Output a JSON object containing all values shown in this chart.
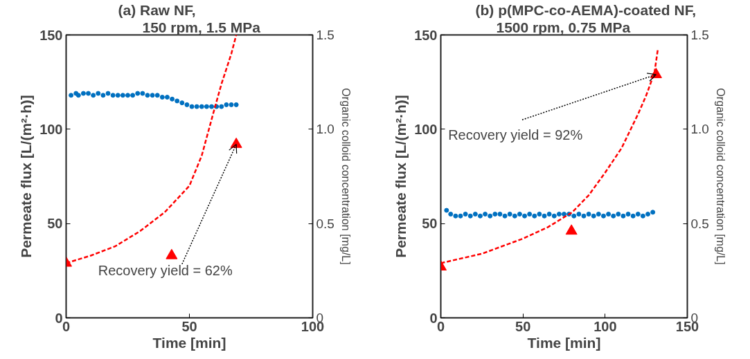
{
  "chart_data": [
    {
      "type": "scatter",
      "title": "(a)  Raw NF,",
      "subtitle": "150 rpm, 1.5 MPa",
      "xlabel": "Time [min]",
      "ylabel": "Permeate flux [L/(m²·h)]",
      "y2label": "Organic colloid concentration [mg/L]",
      "xlim": [
        0,
        100
      ],
      "xticks": [
        0,
        50,
        100
      ],
      "ylim": [
        0,
        150
      ],
      "yticks": [
        0,
        50,
        100,
        150
      ],
      "y2lim": [
        0,
        1.5
      ],
      "y2ticks": [
        0,
        0.5,
        {
          "value": 1,
          "label": "1.0"
        },
        1.5
      ],
      "grid": false,
      "annotations": [
        {
          "text": "Recovery yield = 62%",
          "x": 69,
          "y": 92
        }
      ],
      "series": [
        {
          "marker": "circle",
          "color": "#0070c0",
          "x": [
            2,
            4,
            5,
            7,
            9,
            11,
            13,
            15,
            17,
            19,
            21,
            23,
            25,
            27,
            29,
            31,
            33,
            35,
            37,
            39,
            41,
            43,
            45,
            47,
            49,
            51,
            53,
            55,
            57,
            59,
            61,
            63,
            65,
            67,
            69
          ],
          "values": [
            118,
            119,
            118,
            119,
            119,
            118,
            119,
            118,
            119,
            118,
            118,
            118,
            118,
            118,
            119,
            119,
            118,
            118,
            118,
            117,
            117,
            116,
            115,
            114,
            113,
            112,
            112,
            112,
            112,
            112,
            112,
            112,
            113,
            113,
            113
          ]
        },
        {
          "marker": "triangle",
          "axis": "y2",
          "color": "#ff0000",
          "x": [
            0,
            42.8,
            69
          ],
          "values": [
            0.29,
            0.33,
            0.92
          ]
        },
        {
          "type": "line",
          "line_style": "dashed",
          "axis": "y2",
          "color": "#ff0000",
          "x": [
            0,
            10,
            20,
            30,
            40,
            45,
            50,
            55,
            60,
            63,
            65,
            67,
            69
          ],
          "values": [
            0.29,
            0.33,
            0.38,
            0.46,
            0.56,
            0.63,
            0.7,
            0.86,
            1.1,
            1.24,
            1.32,
            1.4,
            1.5
          ]
        }
      ]
    },
    {
      "type": "scatter",
      "title": "(b) p(MPC-co-AEMA)-coated NF,",
      "subtitle": "1500 rpm, 0.75 MPa",
      "xlabel": "Time [min]",
      "ylabel": "Permeate flux [L/(m²·h)]",
      "y2label": "Organic colloid concentration [mg/L]",
      "xlim": [
        0,
        150
      ],
      "xticks": [
        0,
        50,
        100,
        150
      ],
      "ylim": [
        0,
        150
      ],
      "yticks": [
        0,
        50,
        100,
        150
      ],
      "y2lim": [
        0,
        1.5
      ],
      "y2ticks": [
        0,
        0.5,
        {
          "value": 1,
          "label": "1.0"
        },
        1.5
      ],
      "grid": false,
      "annotations": [
        {
          "text": "Recovery yield = 92%",
          "x": 131,
          "y": 129
        }
      ],
      "series": [
        {
          "marker": "circle",
          "color": "#0070c0",
          "x": [
            3.5,
            6,
            9,
            12,
            15,
            18,
            21,
            24,
            27,
            30,
            33,
            36,
            39,
            42,
            45,
            48,
            51,
            54,
            57,
            60,
            63,
            66,
            69,
            72,
            75,
            78,
            81,
            84,
            87,
            90,
            93,
            96,
            99,
            102,
            105,
            108,
            111,
            114,
            117,
            120,
            123,
            126,
            129
          ],
          "values": [
            57,
            55,
            54,
            54,
            55,
            54,
            55,
            54,
            55,
            54,
            55,
            55,
            54,
            55,
            54,
            55,
            54,
            55,
            54,
            55,
            54,
            55,
            54,
            55,
            55,
            55,
            54,
            55,
            54,
            55,
            54,
            55,
            54,
            55,
            54,
            55,
            54,
            55,
            54,
            55,
            54,
            55,
            56
          ]
        },
        {
          "marker": "triangle",
          "axis": "y2",
          "color": "#ff0000",
          "x": [
            0,
            79.5,
            131
          ],
          "values": [
            0.27,
            0.46,
            1.29
          ]
        },
        {
          "type": "line",
          "line_style": "dashed",
          "axis": "y2",
          "color": "#ff0000",
          "x": [
            0,
            25,
            50,
            65,
            80,
            90,
            100,
            110,
            120,
            125,
            130,
            132
          ],
          "values": [
            0.29,
            0.34,
            0.42,
            0.48,
            0.56,
            0.65,
            0.77,
            0.9,
            1.08,
            1.18,
            1.3,
            1.42
          ]
        }
      ]
    }
  ]
}
